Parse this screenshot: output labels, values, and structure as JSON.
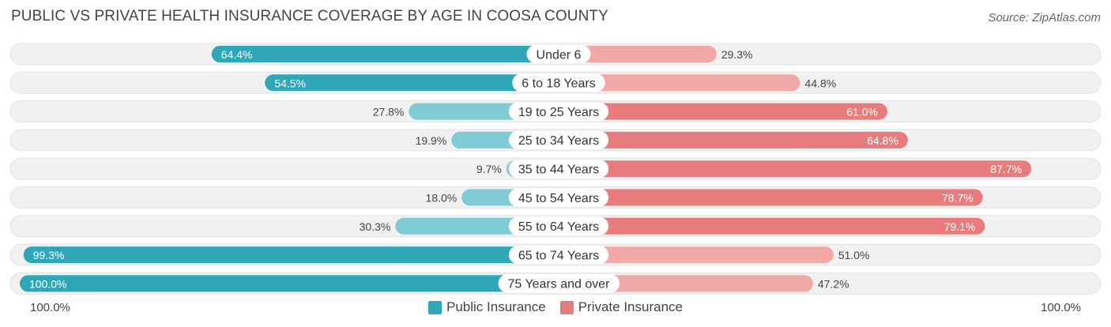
{
  "header": {
    "title": "PUBLIC VS PRIVATE HEALTH INSURANCE COVERAGE BY AGE IN COOSA COUNTY",
    "source": "Source: ZipAtlas.com"
  },
  "colors": {
    "public_strong": "#2fa7b8",
    "public_light": "#7fcbd6",
    "private_strong": "#e87b7b",
    "private_light": "#f2a9a6",
    "track": "#f1f1f1"
  },
  "chart_data": {
    "type": "bar",
    "orientation": "horizontal-diverging",
    "title": "PUBLIC VS PRIVATE HEALTH INSURANCE COVERAGE BY AGE IN COOSA COUNTY",
    "categories": [
      "Under 6",
      "6 to 18 Years",
      "19 to 25 Years",
      "25 to 34 Years",
      "35 to 44 Years",
      "45 to 54 Years",
      "55 to 64 Years",
      "65 to 74 Years",
      "75 Years and over"
    ],
    "series": [
      {
        "name": "Public Insurance",
        "values": [
          64.4,
          54.5,
          27.8,
          19.9,
          9.7,
          18.0,
          30.3,
          99.3,
          100.0
        ],
        "labels": [
          "64.4%",
          "54.5%",
          "27.8%",
          "19.9%",
          "9.7%",
          "18.0%",
          "30.3%",
          "99.3%",
          "100.0%"
        ]
      },
      {
        "name": "Private Insurance",
        "values": [
          29.3,
          44.8,
          61.0,
          64.8,
          87.7,
          78.7,
          79.1,
          51.0,
          47.2
        ],
        "labels": [
          "29.3%",
          "44.8%",
          "61.0%",
          "64.8%",
          "87.7%",
          "78.7%",
          "79.1%",
          "51.0%",
          "47.2%"
        ]
      }
    ],
    "xlim": [
      0,
      100
    ],
    "axis_left_label": "100.0%",
    "axis_right_label": "100.0%",
    "legend_position": "bottom-center"
  }
}
